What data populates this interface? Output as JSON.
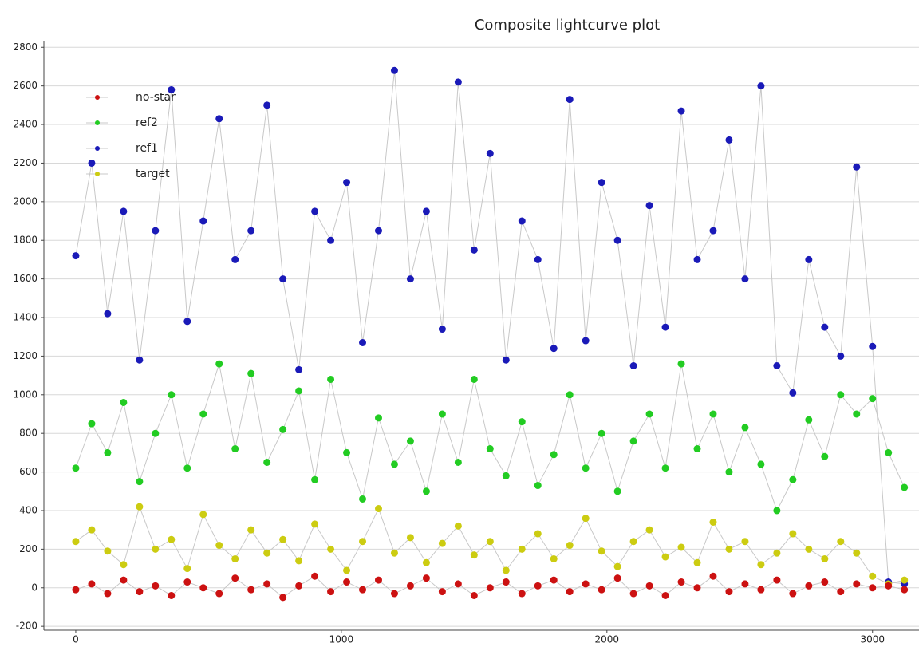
{
  "chart_data": {
    "type": "scatter",
    "title": "Composite lightcurve plot",
    "x": [
      0,
      60,
      120,
      180,
      240,
      300,
      360,
      420,
      480,
      540,
      600,
      660,
      720,
      780,
      840,
      900,
      960,
      1020,
      1080,
      1140,
      1200,
      1260,
      1320,
      1380,
      1440,
      1500,
      1560,
      1620,
      1680,
      1740,
      1800,
      1860,
      1920,
      1980,
      2040,
      2100,
      2160,
      2220,
      2280,
      2340,
      2400,
      2460,
      2520,
      2580,
      2640,
      2700,
      2760,
      2820,
      2880,
      2940,
      3000,
      3060,
      3120
    ],
    "series": [
      {
        "name": "ref1",
        "color": "#1a1ab8",
        "values": [
          1720,
          2200,
          1420,
          1950,
          1180,
          1850,
          2580,
          1380,
          1900,
          2430,
          1700,
          1850,
          2500,
          1600,
          1130,
          1950,
          1800,
          2100,
          1270,
          1850,
          2680,
          1600,
          1950,
          1340,
          2620,
          1750,
          2250,
          1180,
          1900,
          1700,
          1240,
          2530,
          1280,
          2100,
          1800,
          1150,
          1980,
          1350,
          2470,
          1700,
          1850,
          2320,
          1600,
          2600,
          1150,
          1010,
          1700,
          1350,
          1200,
          2180,
          1250,
          30,
          20
        ]
      },
      {
        "name": "ref2",
        "color": "#22cc22",
        "values": [
          620,
          850,
          700,
          960,
          550,
          800,
          1000,
          620,
          900,
          1160,
          720,
          1110,
          650,
          820,
          1020,
          560,
          1080,
          700,
          460,
          880,
          640,
          760,
          500,
          900,
          650,
          1080,
          720,
          580,
          860,
          530,
          690,
          1000,
          620,
          800,
          500,
          760,
          900,
          620,
          1160,
          720,
          900,
          600,
          830,
          640,
          400,
          560,
          870,
          680,
          1000,
          900,
          980,
          700,
          520
        ]
      },
      {
        "name": "target",
        "color": "#cccc11",
        "values": [
          240,
          300,
          190,
          120,
          420,
          200,
          250,
          100,
          380,
          220,
          150,
          300,
          180,
          250,
          140,
          330,
          200,
          90,
          240,
          410,
          180,
          260,
          130,
          230,
          320,
          170,
          240,
          90,
          200,
          280,
          150,
          220,
          360,
          190,
          110,
          240,
          300,
          160,
          210,
          130,
          340,
          200,
          240,
          120,
          180,
          280,
          200,
          150,
          240,
          180,
          60,
          20,
          40
        ]
      },
      {
        "name": "no-star",
        "color": "#cc1111",
        "values": [
          -10,
          20,
          -30,
          40,
          -20,
          10,
          -40,
          30,
          0,
          -30,
          50,
          -10,
          20,
          -50,
          10,
          60,
          -20,
          30,
          -10,
          40,
          -30,
          10,
          50,
          -20,
          20,
          -40,
          0,
          30,
          -30,
          10,
          40,
          -20,
          20,
          -10,
          50,
          -30,
          10,
          -40,
          30,
          0,
          60,
          -20,
          20,
          -10,
          40,
          -30,
          10,
          30,
          -20,
          20,
          0,
          10,
          -10
        ]
      }
    ],
    "legend_order": [
      3,
      1,
      0,
      2
    ],
    "xlim": [
      -120,
      3175
    ],
    "ylim": [
      -220,
      2830
    ],
    "xticks": [
      0,
      1000,
      2000,
      3000
    ],
    "yticks": [
      -200,
      0,
      200,
      400,
      600,
      800,
      1000,
      1200,
      1400,
      1600,
      1800,
      2000,
      2200,
      2400,
      2600,
      2800
    ],
    "grid": true,
    "legend": "upper left",
    "line_color": "#c8c8c8"
  }
}
